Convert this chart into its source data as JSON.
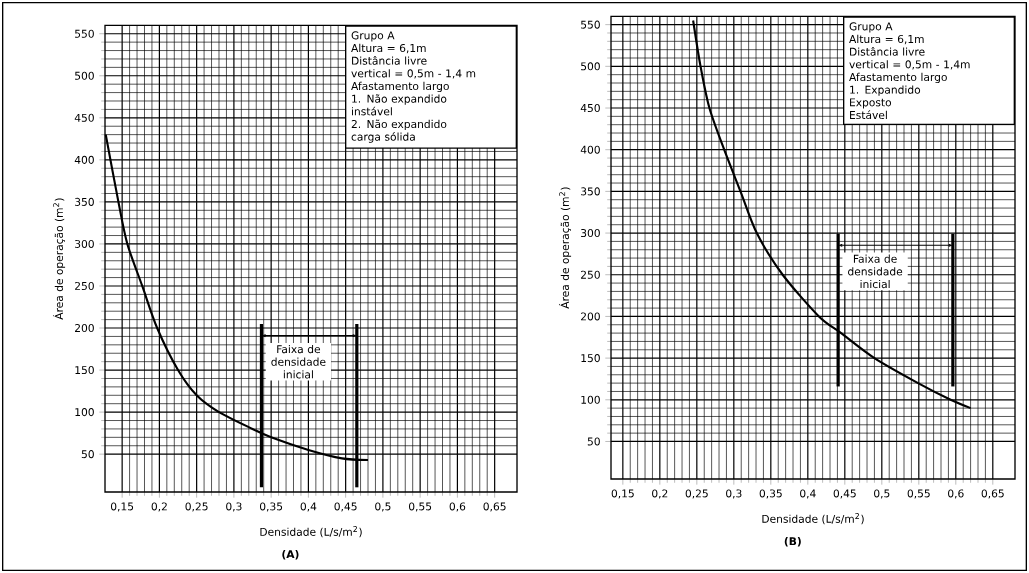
{
  "chart_data": [
    {
      "type": "line",
      "title": "(A)",
      "xlabel": "Densidade (L/s/m$^{2}$)",
      "ylabel": "Área de operação (m$^{2}$)",
      "xlim": [
        0.127,
        0.68
      ],
      "ylim": [
        5,
        560
      ],
      "xticks": [
        {
          "value": 0.15,
          "label": "0,15"
        },
        {
          "value": 0.2,
          "label": "0,2"
        },
        {
          "value": 0.25,
          "label": "0,25"
        },
        {
          "value": 0.3,
          "label": "0,3"
        },
        {
          "value": 0.35,
          "label": "0,35"
        },
        {
          "value": 0.4,
          "label": "0,4"
        },
        {
          "value": 0.45,
          "label": "0,45"
        },
        {
          "value": 0.5,
          "label": "0,5"
        },
        {
          "value": 0.55,
          "label": "0,55"
        },
        {
          "value": 0.6,
          "label": "0,6"
        },
        {
          "value": 0.65,
          "label": "0,65"
        }
      ],
      "yticks": [
        50,
        100,
        150,
        200,
        250,
        300,
        350,
        400,
        450,
        500,
        550
      ],
      "grid": true,
      "x": [
        0.128,
        0.145,
        0.157,
        0.177,
        0.197,
        0.225,
        0.25,
        0.28,
        0.325,
        0.35,
        0.4,
        0.445,
        0.48
      ],
      "series": [
        {
          "color": "#000000",
          "values": [
            430,
            350,
            300,
            250,
            200,
            150,
            120,
            100,
            80,
            70,
            55,
            45,
            43
          ]
        }
      ],
      "ref_lines": [
        {
          "axis": "x",
          "value": 0.337,
          "label": "Faixa de densidade inicial"
        },
        {
          "axis": "x",
          "value": 0.465
        }
      ],
      "annotations": [
        "Grupo A",
        "Altura = 6,1m",
        "Distância livre",
        "vertical = 0,5m - 1,4 m",
        "Afastamento largo",
        "1. Não expandido",
        "instável",
        "2. Não expandido",
        "carga sólida"
      ]
    },
    {
      "type": "line",
      "title": "(B)",
      "xlabel": "Densidade (L/s/m$^{2}$)",
      "ylabel": "Área de operação (m$^{2}$)",
      "xlim": [
        0.134,
        0.68
      ],
      "ylim": [
        5,
        560
      ],
      "xticks": [
        {
          "value": 0.15,
          "label": "0,15"
        },
        {
          "value": 0.2,
          "label": "0,2"
        },
        {
          "value": 0.25,
          "label": "0,25"
        },
        {
          "value": 0.3,
          "label": "0,3"
        },
        {
          "value": 0.35,
          "label": "0,35"
        },
        {
          "value": 0.4,
          "label": "0,4"
        },
        {
          "value": 0.45,
          "label": "0,45"
        },
        {
          "value": 0.5,
          "label": "0,5"
        },
        {
          "value": 0.55,
          "label": "0,55"
        },
        {
          "value": 0.6,
          "label": "0,6"
        },
        {
          "value": 0.65,
          "label": "0,65"
        }
      ],
      "yticks": [
        50,
        100,
        150,
        200,
        250,
        300,
        350,
        400,
        450,
        500,
        550
      ],
      "grid": true,
      "x": [
        0.245,
        0.255,
        0.267,
        0.287,
        0.309,
        0.331,
        0.366,
        0.415,
        0.445,
        0.49,
        0.549,
        0.593,
        0.62
      ],
      "series": [
        {
          "color": "#000000",
          "values": [
            555,
            500,
            450,
            400,
            350,
            300,
            250,
            200,
            180,
            150,
            120,
            100,
            90
          ]
        }
      ],
      "ref_lines": [
        {
          "axis": "x",
          "value": 0.441,
          "label": "Faixa de densidade inicial"
        },
        {
          "axis": "x",
          "value": 0.596
        }
      ],
      "annotations": [
        "Grupo A",
        "Altura = 6,1m",
        "Distância livre",
        "vertical = 0,5m - 1,4m",
        "Afastamento largo",
        "1. Expandido",
        "Exposto",
        "Estável"
      ]
    }
  ]
}
